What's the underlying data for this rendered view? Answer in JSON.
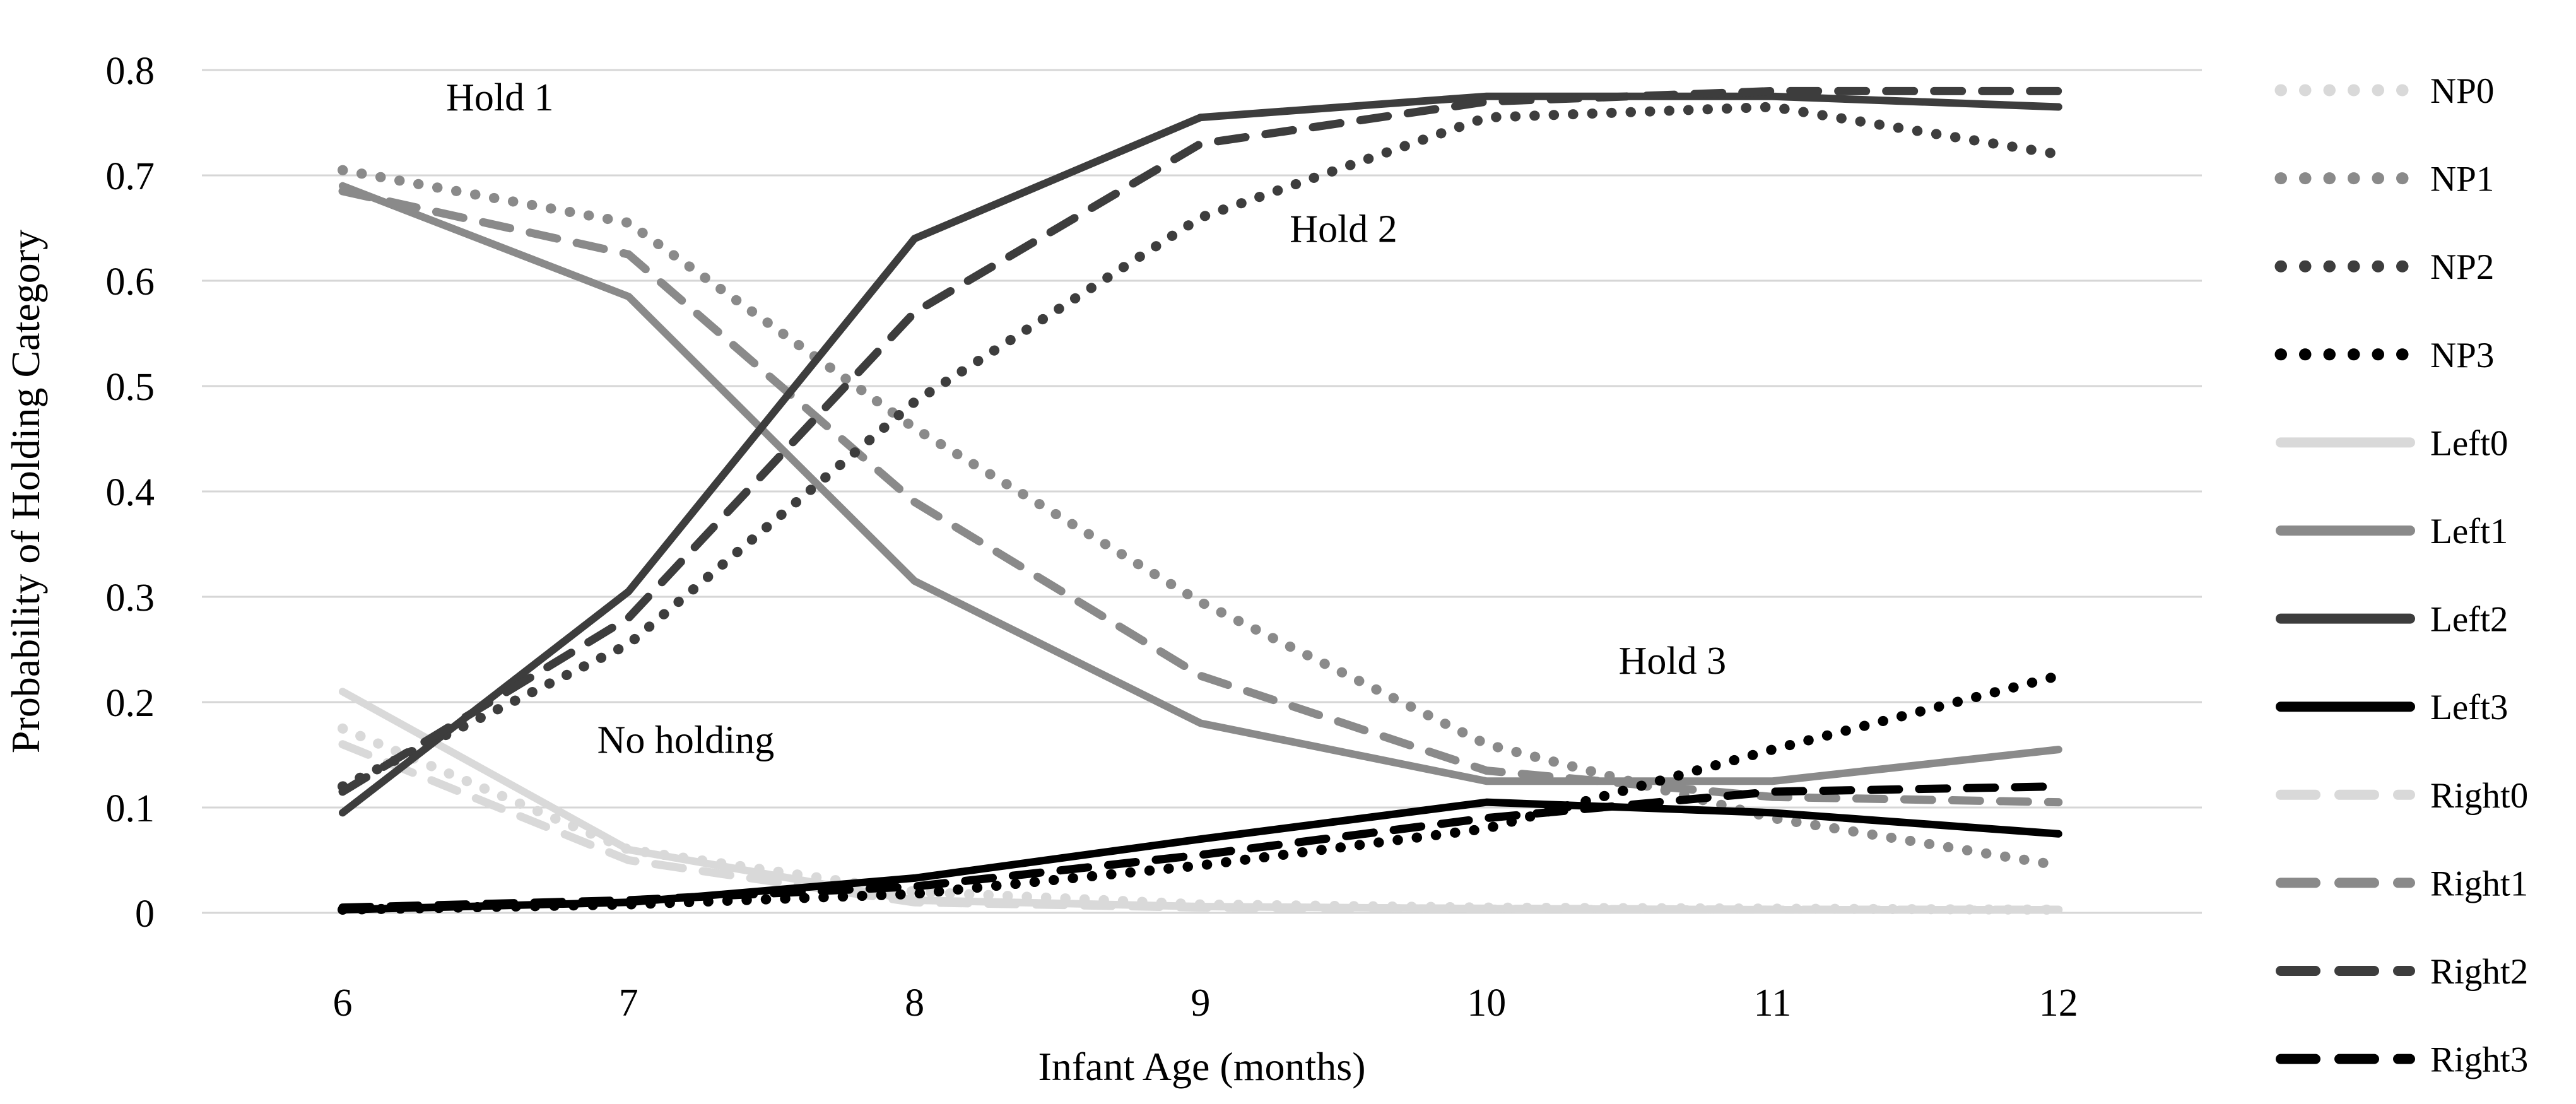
{
  "chart_data": {
    "type": "line",
    "title": "",
    "xlabel": "Infant Age (months)",
    "ylabel": "Probability of Holding Category",
    "x": [
      6,
      7,
      8,
      9,
      10,
      11,
      12
    ],
    "xtick_labels": [
      "6",
      "7",
      "8",
      "9",
      "10",
      "11",
      "12"
    ],
    "ylim": [
      0,
      0.8
    ],
    "yticks": [
      0,
      0.1,
      0.2,
      0.3,
      0.4,
      0.5,
      0.6,
      0.7,
      0.8
    ],
    "ytick_labels": [
      "0",
      "0.1",
      "0.2",
      "0.3",
      "0.4",
      "0.5",
      "0.6",
      "0.7",
      "0.8"
    ],
    "grid": "horizontal-only",
    "legend_position": "right",
    "shade_colors": [
      "#d9d9d9",
      "#8a8a8a",
      "#3d3d3d",
      "#000000"
    ],
    "gridline_color": "#d6d6d6",
    "series": [
      {
        "name": "NP0",
        "style": "dotted",
        "shade": 0,
        "color": "#d9d9d9",
        "values": [
          0.175,
          0.06,
          0.02,
          0.008,
          0.005,
          0.004,
          0.003
        ]
      },
      {
        "name": "NP1",
        "style": "dotted",
        "shade": 1,
        "color": "#8a8a8a",
        "values": [
          0.705,
          0.655,
          0.46,
          0.295,
          0.16,
          0.09,
          0.045
        ]
      },
      {
        "name": "NP2",
        "style": "dotted",
        "shade": 2,
        "color": "#3d3d3d",
        "values": [
          0.12,
          0.255,
          0.485,
          0.66,
          0.755,
          0.765,
          0.72
        ]
      },
      {
        "name": "NP3",
        "style": "dotted",
        "shade": 3,
        "color": "#000000",
        "values": [
          0.003,
          0.008,
          0.018,
          0.045,
          0.08,
          0.155,
          0.225
        ]
      },
      {
        "name": "Left0",
        "style": "solid",
        "shade": 0,
        "color": "#d9d9d9",
        "values": [
          0.21,
          0.06,
          0.012,
          0.006,
          0.004,
          0.003,
          0.003
        ]
      },
      {
        "name": "Left1",
        "style": "solid",
        "shade": 1,
        "color": "#8a8a8a",
        "values": [
          0.69,
          0.585,
          0.315,
          0.18,
          0.125,
          0.125,
          0.155
        ]
      },
      {
        "name": "Left2",
        "style": "solid",
        "shade": 2,
        "color": "#3d3d3d",
        "values": [
          0.095,
          0.305,
          0.64,
          0.755,
          0.775,
          0.775,
          0.765
        ]
      },
      {
        "name": "Left3",
        "style": "solid",
        "shade": 3,
        "color": "#000000",
        "values": [
          0.003,
          0.01,
          0.033,
          0.07,
          0.105,
          0.095,
          0.075
        ]
      },
      {
        "name": "Right0",
        "style": "dashed",
        "shade": 0,
        "color": "#d9d9d9",
        "values": [
          0.16,
          0.05,
          0.01,
          0.005,
          0.004,
          0.003,
          0.003
        ]
      },
      {
        "name": "Right1",
        "style": "dashed",
        "shade": 1,
        "color": "#8a8a8a",
        "values": [
          0.685,
          0.625,
          0.39,
          0.225,
          0.135,
          0.11,
          0.105
        ]
      },
      {
        "name": "Right2",
        "style": "dashed",
        "shade": 2,
        "color": "#3d3d3d",
        "values": [
          0.115,
          0.28,
          0.57,
          0.73,
          0.77,
          0.78,
          0.78
        ]
      },
      {
        "name": "Right3",
        "style": "dashed",
        "shade": 3,
        "color": "#000000",
        "values": [
          0.005,
          0.012,
          0.025,
          0.055,
          0.09,
          0.115,
          0.12
        ]
      }
    ],
    "annotations": [
      {
        "text": "Hold 1",
        "x": 6.55,
        "y": 0.775
      },
      {
        "text": "Hold 2",
        "x": 9.5,
        "y": 0.65
      },
      {
        "text": "Hold 3",
        "x": 10.65,
        "y": 0.24
      },
      {
        "text": "No holding",
        "x": 7.2,
        "y": 0.165
      }
    ]
  }
}
